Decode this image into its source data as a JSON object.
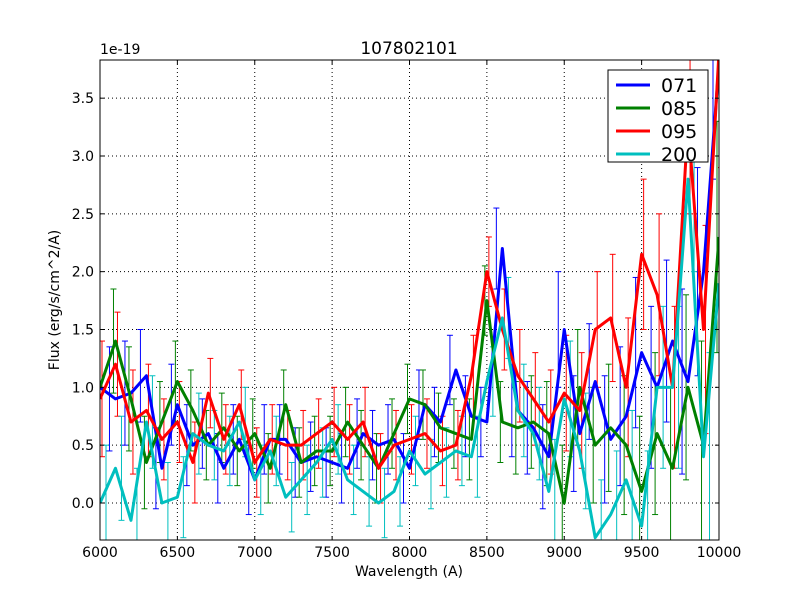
{
  "chart_data": {
    "type": "line",
    "title": "107802101",
    "xlabel": "Wavelength (A)",
    "ylabel": "Flux (erg/s/cm^2/A)",
    "y_offset_label": "1e-19",
    "xlim": [
      6000,
      10000
    ],
    "ylim": [
      -0.32,
      3.83
    ],
    "xticks": [
      6000,
      6500,
      7000,
      7500,
      8000,
      8500,
      9000,
      9500,
      10000
    ],
    "xtick_labels": [
      "6000",
      "6500",
      "7000",
      "7500",
      "8000",
      "8500",
      "9000",
      "9500",
      "10000"
    ],
    "yticks": [
      0.0,
      0.5,
      1.0,
      1.5,
      2.0,
      2.5,
      3.0,
      3.5
    ],
    "ytick_labels": [
      "0.0",
      "0.5",
      "1.0",
      "1.5",
      "2.0",
      "2.5",
      "3.0",
      "3.5"
    ],
    "grid": true,
    "legend_position": "top-right",
    "x": [
      6000,
      6100,
      6200,
      6300,
      6400,
      6500,
      6600,
      6700,
      6800,
      6900,
      7000,
      7100,
      7200,
      7300,
      7400,
      7500,
      7600,
      7700,
      7800,
      7900,
      8000,
      8100,
      8200,
      8300,
      8400,
      8500,
      8600,
      8700,
      8800,
      8900,
      9000,
      9100,
      9200,
      9300,
      9400,
      9500,
      9600,
      9700,
      9800,
      9900,
      10000
    ],
    "series": [
      {
        "name": "071",
        "color": "#0000ff",
        "values": [
          1.0,
          0.9,
          0.95,
          1.1,
          0.3,
          0.85,
          0.5,
          0.6,
          0.3,
          0.55,
          0.2,
          0.55,
          0.55,
          0.35,
          0.4,
          0.35,
          0.3,
          0.6,
          0.5,
          0.55,
          0.3,
          0.85,
          0.7,
          1.15,
          0.75,
          0.7,
          2.2,
          0.8,
          0.65,
          0.4,
          1.5,
          0.6,
          1.05,
          0.55,
          0.75,
          1.3,
          1.0,
          1.4,
          1.05,
          2.0,
          3.8
        ],
        "yerr": [
          0.5,
          0.45,
          0.45,
          0.4,
          0.35,
          0.35,
          0.35,
          0.3,
          0.3,
          0.3,
          0.3,
          0.3,
          0.3,
          0.3,
          0.3,
          0.3,
          0.3,
          0.3,
          0.3,
          0.3,
          0.3,
          0.3,
          0.3,
          0.3,
          0.35,
          0.3,
          0.35,
          0.4,
          0.4,
          0.45,
          0.5,
          0.5,
          0.5,
          0.55,
          0.6,
          0.65,
          0.7,
          0.7,
          0.8,
          0.9,
          1.0
        ]
      },
      {
        "name": "085",
        "color": "#008000",
        "values": [
          1.0,
          1.4,
          0.9,
          0.35,
          0.7,
          1.05,
          0.8,
          0.5,
          0.65,
          0.45,
          0.6,
          0.3,
          0.85,
          0.35,
          0.45,
          0.45,
          0.7,
          0.5,
          0.3,
          0.6,
          0.9,
          0.85,
          0.65,
          0.6,
          0.55,
          1.75,
          0.7,
          0.65,
          0.7,
          0.6,
          0.0,
          1.0,
          0.5,
          0.65,
          0.5,
          0.1,
          0.6,
          0.3,
          1.0,
          0.5,
          2.3
        ],
        "yerr": [
          0.5,
          0.45,
          0.45,
          0.4,
          0.35,
          0.35,
          0.35,
          0.3,
          0.3,
          0.3,
          0.3,
          0.3,
          0.3,
          0.3,
          0.3,
          0.3,
          0.3,
          0.3,
          0.3,
          0.3,
          0.3,
          0.3,
          0.3,
          0.3,
          0.35,
          0.3,
          0.35,
          0.4,
          0.4,
          0.45,
          0.5,
          0.5,
          0.5,
          0.55,
          0.6,
          0.65,
          0.7,
          0.7,
          0.8,
          0.9,
          1.0
        ]
      },
      {
        "name": "095",
        "color": "#ff0000",
        "values": [
          0.9,
          1.2,
          0.7,
          0.8,
          0.55,
          0.7,
          0.35,
          0.95,
          0.55,
          0.85,
          0.35,
          0.55,
          0.5,
          0.5,
          0.6,
          0.7,
          0.55,
          0.7,
          0.3,
          0.5,
          0.55,
          0.6,
          0.45,
          0.5,
          1.1,
          2.0,
          1.5,
          1.1,
          0.9,
          0.7,
          0.95,
          0.8,
          1.5,
          1.6,
          1.0,
          2.15,
          1.8,
          1.0,
          3.3,
          1.5,
          3.9
        ],
        "yerr": [
          0.5,
          0.45,
          0.45,
          0.4,
          0.35,
          0.35,
          0.35,
          0.3,
          0.3,
          0.3,
          0.3,
          0.3,
          0.3,
          0.3,
          0.3,
          0.3,
          0.3,
          0.3,
          0.3,
          0.3,
          0.3,
          0.3,
          0.3,
          0.3,
          0.35,
          0.3,
          0.35,
          0.4,
          0.4,
          0.45,
          0.5,
          0.5,
          0.5,
          0.55,
          0.6,
          0.65,
          0.7,
          0.7,
          0.8,
          0.9,
          1.0
        ]
      },
      {
        "name": "200",
        "color": "#00bfbf",
        "values": [
          0.0,
          0.3,
          -0.15,
          0.7,
          0.0,
          0.05,
          0.6,
          0.5,
          0.45,
          0.7,
          0.2,
          0.45,
          0.05,
          0.2,
          0.35,
          0.55,
          0.2,
          0.1,
          0.0,
          0.1,
          0.45,
          0.25,
          0.35,
          0.45,
          0.4,
          1.05,
          1.6,
          0.8,
          0.6,
          0.1,
          0.9,
          0.45,
          -0.3,
          -0.1,
          0.2,
          -0.2,
          1.0,
          1.0,
          2.8,
          0.4,
          1.9
        ],
        "yerr": [
          0.5,
          0.45,
          0.45,
          0.4,
          0.35,
          0.35,
          0.35,
          0.3,
          0.3,
          0.3,
          0.3,
          0.3,
          0.3,
          0.3,
          0.3,
          0.3,
          0.3,
          0.3,
          0.3,
          0.3,
          0.3,
          0.3,
          0.3,
          0.3,
          0.35,
          0.3,
          0.35,
          0.4,
          0.4,
          0.45,
          0.5,
          0.5,
          0.5,
          0.55,
          0.6,
          0.65,
          0.7,
          0.7,
          0.8,
          0.9,
          1.0
        ]
      }
    ]
  }
}
